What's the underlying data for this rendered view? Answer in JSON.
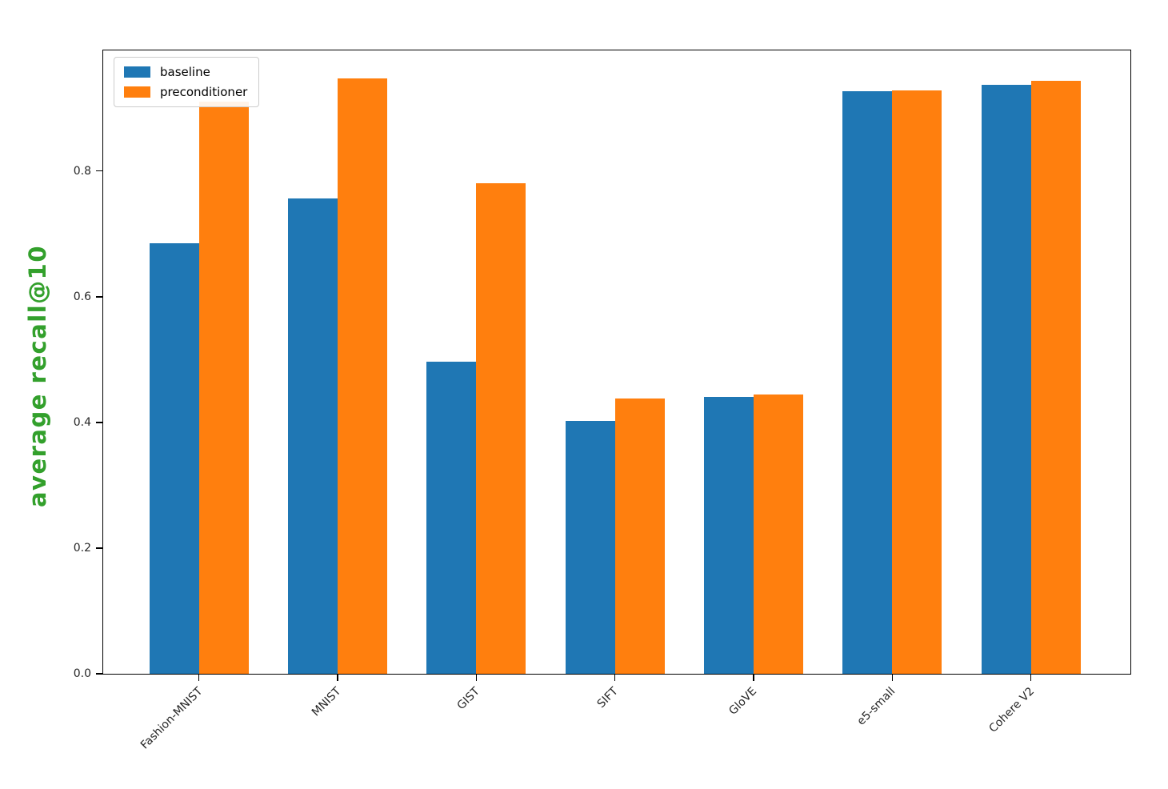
{
  "chart_data": {
    "type": "bar",
    "title": "",
    "xlabel": "",
    "ylabel": "average recall@10",
    "ylabel_color": "#33a02c",
    "categories": [
      "Fashion-MNIST",
      "MNIST",
      "GIST",
      "SIFT",
      "GloVE",
      "e5-small",
      "Cohere V2"
    ],
    "series": [
      {
        "name": "baseline",
        "color": "#1f77b4",
        "values": [
          0.685,
          0.757,
          0.497,
          0.403,
          0.44,
          0.927,
          0.937
        ]
      },
      {
        "name": "preconditioner",
        "color": "#ff7f0e",
        "values": [
          0.911,
          0.947,
          0.78,
          0.438,
          0.444,
          0.928,
          0.943
        ]
      }
    ],
    "ylim": [
      0,
      0.992
    ],
    "yticks": [
      "0.0",
      "0.2",
      "0.4",
      "0.6",
      "0.8"
    ],
    "ytick_values": [
      0.0,
      0.2,
      0.4,
      0.6,
      0.8
    ],
    "grid": false,
    "legend_position": "upper left",
    "axis_color": "#000000",
    "tick_label_color": "#262626",
    "background_color": "#ffffff"
  },
  "legend": {
    "items": [
      {
        "label": "baseline",
        "color": "#1f77b4"
      },
      {
        "label": "preconditioner",
        "color": "#ff7f0e"
      }
    ]
  }
}
